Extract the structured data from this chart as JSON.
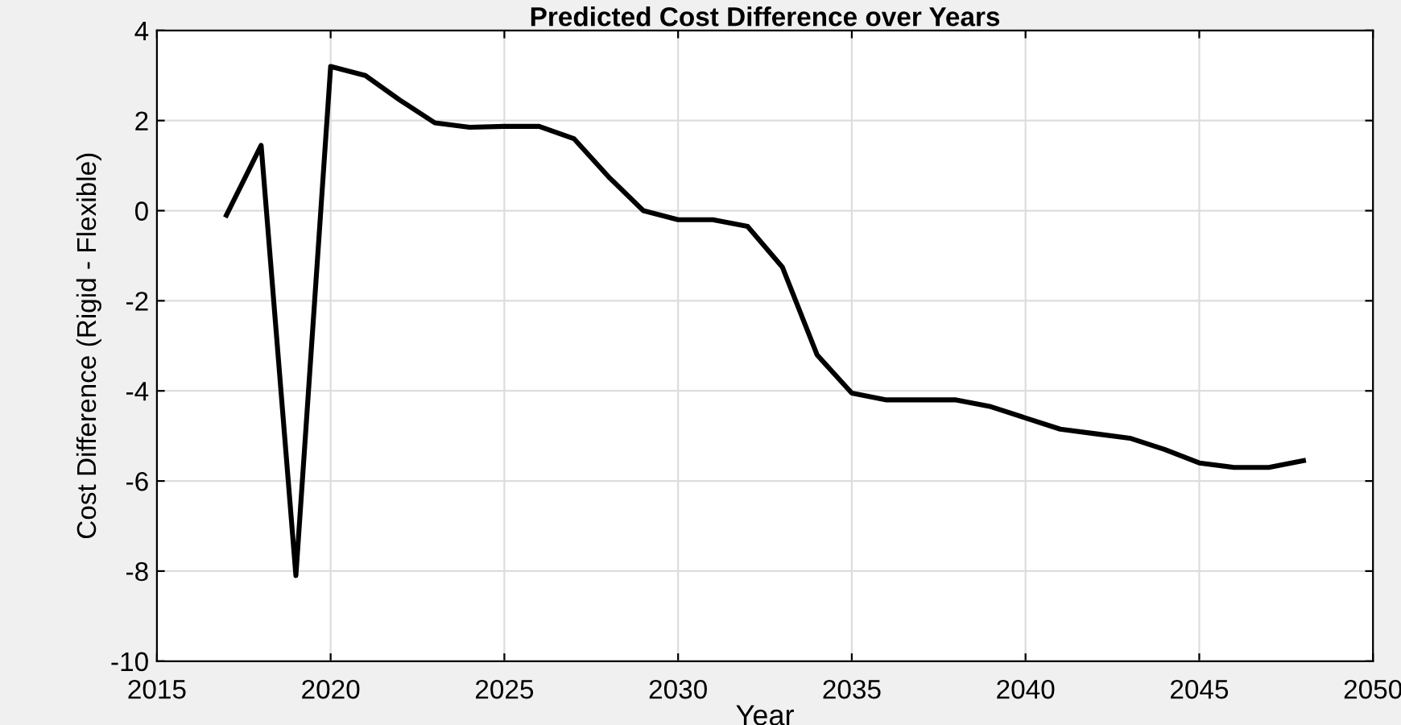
{
  "chart_data": {
    "type": "line",
    "title": "Predicted Cost Difference over Years",
    "xlabel": "Year",
    "ylabel": "Cost Difference (Rigid - Flexible)",
    "x": [
      2017,
      2018,
      2019,
      2020,
      2021,
      2022,
      2023,
      2024,
      2025,
      2026,
      2027,
      2028,
      2029,
      2030,
      2031,
      2032,
      2033,
      2034,
      2035,
      2036,
      2037,
      2038,
      2039,
      2040,
      2041,
      2042,
      2043,
      2044,
      2045,
      2046,
      2047,
      2048
    ],
    "series": [
      {
        "color": "#000000",
        "values": [
          -0.1,
          1.45,
          -8.1,
          3.2,
          3.0,
          2.45,
          1.95,
          1.85,
          1.87,
          1.87,
          1.6,
          0.75,
          0.0,
          -0.2,
          -0.2,
          -0.35,
          -1.25,
          -3.2,
          -4.05,
          -4.2,
          -4.2,
          -4.2,
          -4.35,
          -4.6,
          -4.85,
          -4.95,
          -5.05,
          -5.3,
          -5.6,
          -5.7,
          -5.7,
          -5.55
        ]
      }
    ],
    "xlim": [
      2015,
      2050
    ],
    "xticks": [
      2015,
      2020,
      2025,
      2030,
      2035,
      2040,
      2045,
      2050
    ],
    "ylim": [
      -10,
      4
    ],
    "yticks": [
      -10,
      -8,
      -6,
      -4,
      -2,
      0,
      2,
      4
    ],
    "grid": true,
    "marker": "none",
    "line_style": "solid",
    "legend": false
  }
}
